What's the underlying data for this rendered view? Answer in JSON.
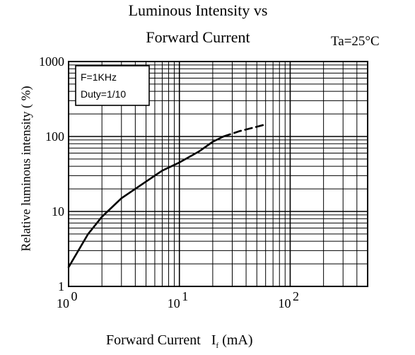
{
  "chart_data": {
    "type": "line",
    "title_line1": "Luminous Intensity vs",
    "title_line2": "Forward Current",
    "condition": "Ta=25°C",
    "xlabel": "Forward Current",
    "xlabel_symbol": "I",
    "xlabel_subscript": "f",
    "xlabel_unit": "(mA)",
    "ylabel": "Relative luminous intensity ( %)",
    "xscale": "log",
    "yscale": "log",
    "xlim": [
      1,
      500
    ],
    "ylim": [
      1,
      1000
    ],
    "grid": true,
    "x_ticks": [
      {
        "value": 1,
        "base": "10",
        "exp": "0"
      },
      {
        "value": 10,
        "base": "10",
        "exp": "1"
      },
      {
        "value": 100,
        "base": "10",
        "exp": "2"
      }
    ],
    "y_ticks": [
      {
        "value": 1,
        "label": "1"
      },
      {
        "value": 10,
        "label": "10"
      },
      {
        "value": 100,
        "label": "100"
      },
      {
        "value": 1000,
        "label": "1000"
      }
    ],
    "annotation": [
      "F=1KHz",
      "Duty=1/10"
    ],
    "series": [
      {
        "style": "solid",
        "x": [
          1,
          1.5,
          2,
          3,
          5,
          7,
          10,
          15,
          20,
          25
        ],
        "y": [
          1.8,
          5,
          8.5,
          15,
          25,
          35,
          45,
          63,
          85,
          100
        ]
      },
      {
        "style": "dashed",
        "x": [
          25,
          35,
          50,
          60
        ],
        "y": [
          100,
          118,
          135,
          145
        ]
      }
    ]
  }
}
